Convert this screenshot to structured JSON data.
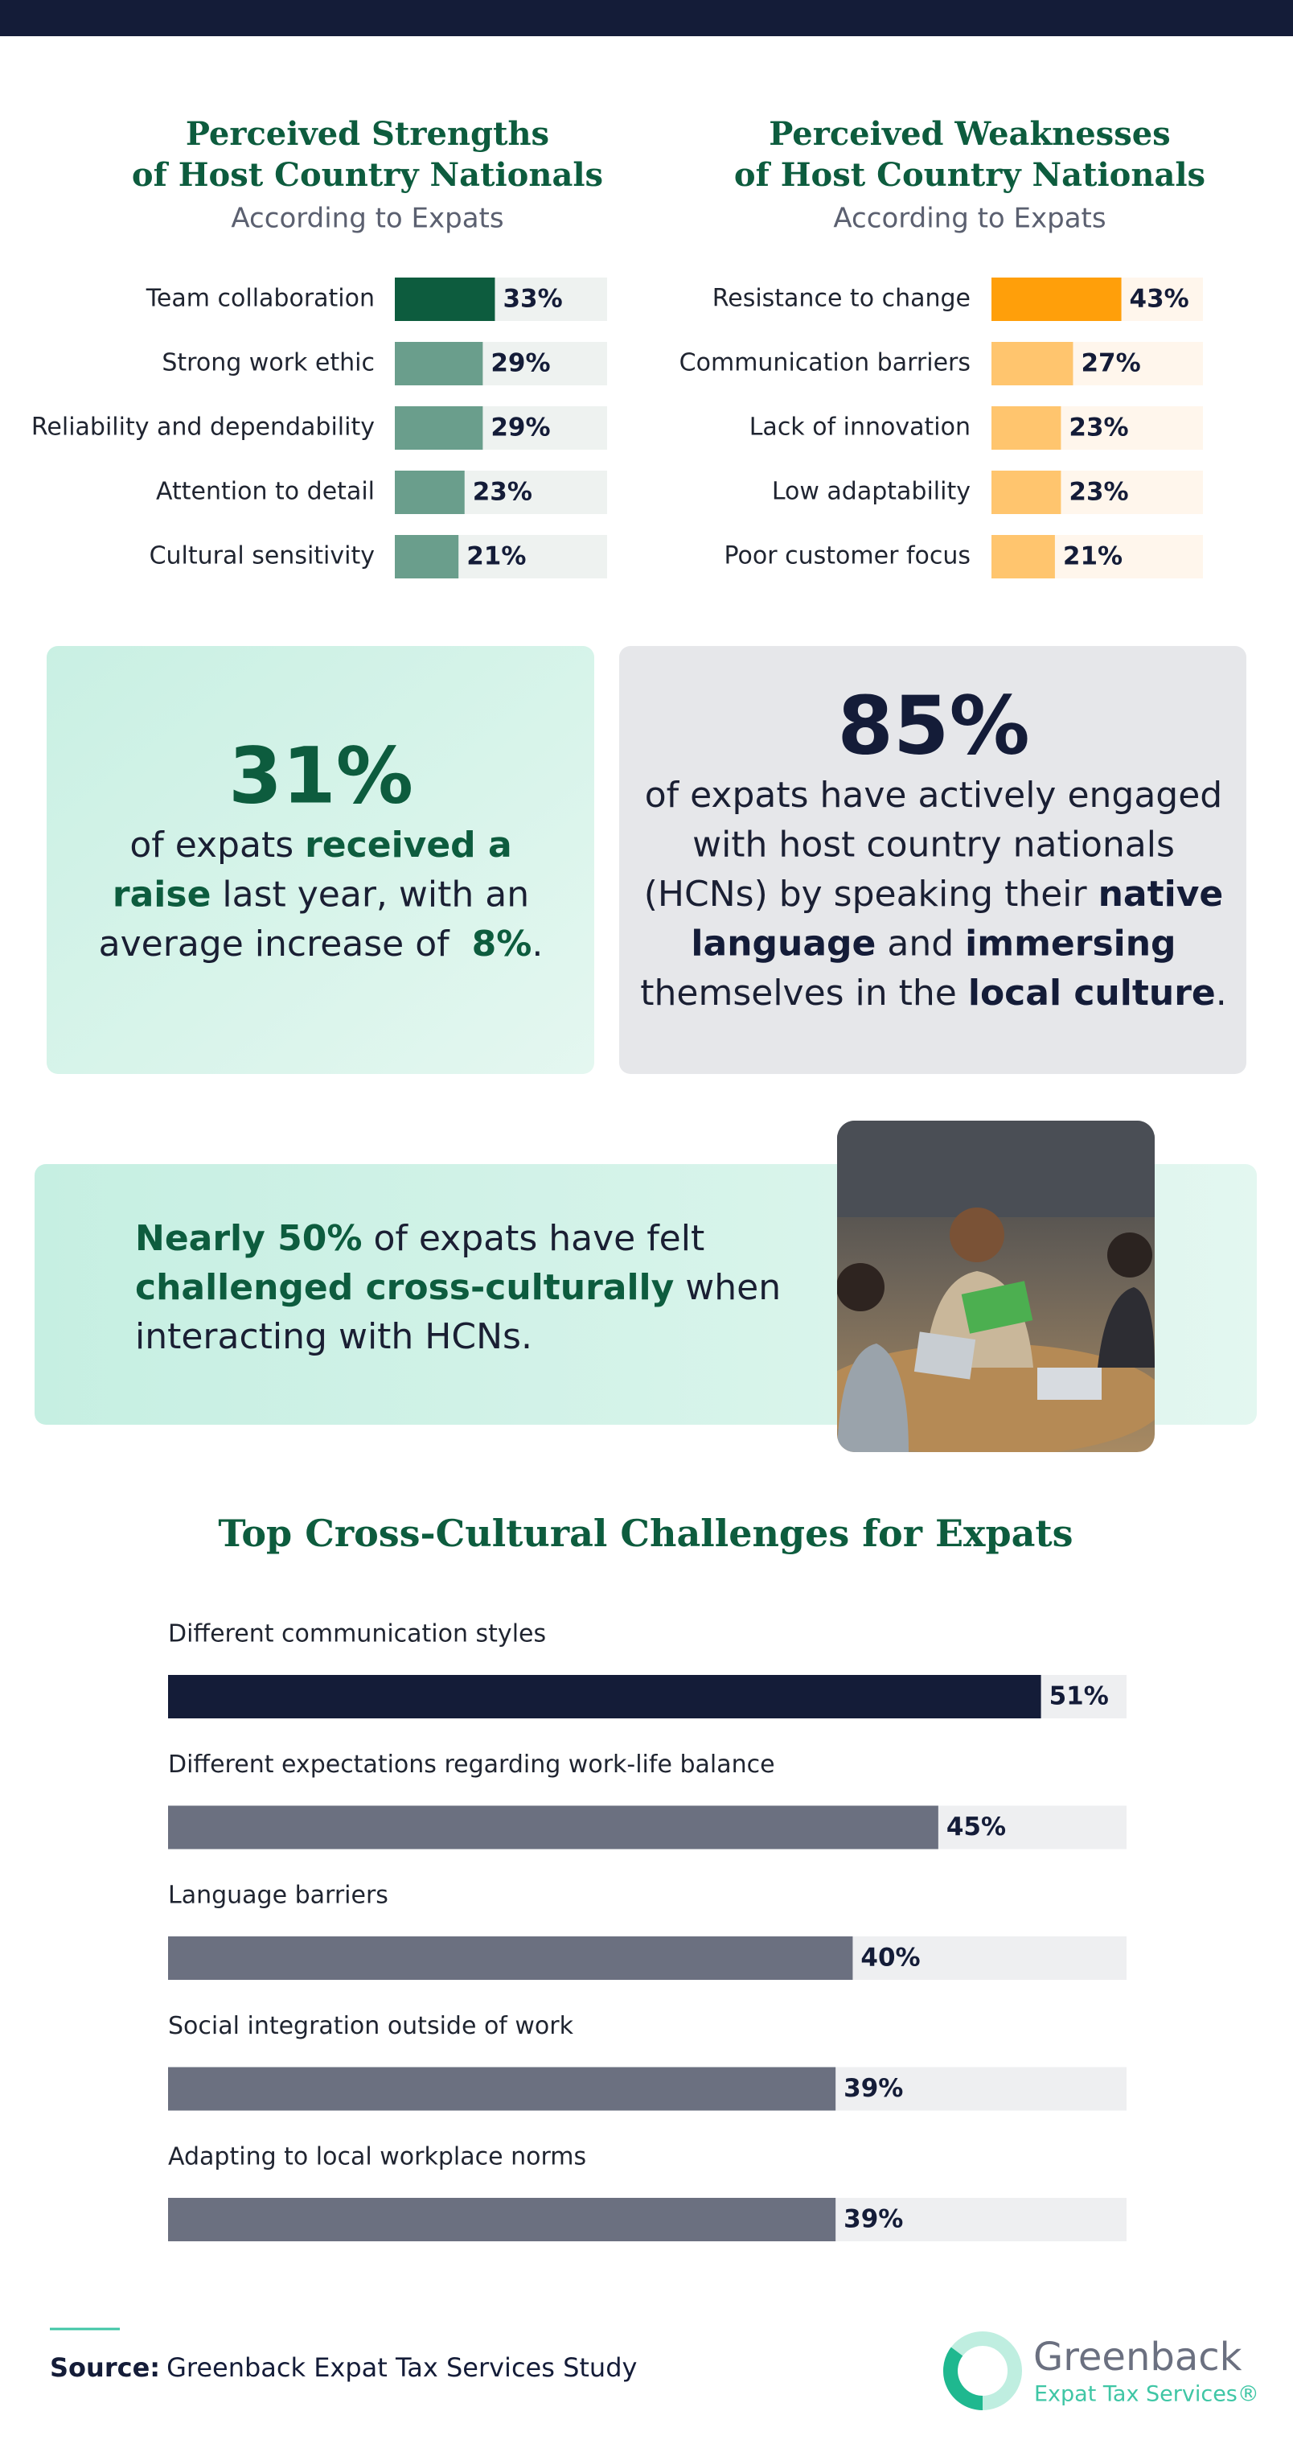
{
  "chart_data": [
    {
      "type": "bar",
      "title": [
        "Perceived Strengths",
        "of Host Country Nationals"
      ],
      "subtitle": "According to Expats",
      "categories": [
        "Team collaboration",
        "Strong work ethic",
        "Reliability and dependability",
        "Attention to detail",
        "Cultural sensitivity"
      ],
      "values": [
        33,
        29,
        29,
        23,
        21
      ],
      "value_labels": [
        "33%",
        "29%",
        "29%",
        "23%",
        "21%"
      ],
      "colors": [
        "#0d5c3e",
        "#6a9e8c",
        "#6a9e8c",
        "#6a9e8c",
        "#6a9e8c"
      ],
      "track_color": "#eef2f0",
      "xlim": [
        0,
        70
      ]
    },
    {
      "type": "bar",
      "title": [
        "Perceived Weaknesses",
        "of Host Country Nationals"
      ],
      "subtitle": "According to Expats",
      "categories": [
        "Resistance to change",
        "Communication barriers",
        "Lack of innovation",
        "Low adaptability",
        "Poor customer focus"
      ],
      "values": [
        43,
        27,
        23,
        23,
        21
      ],
      "value_labels": [
        "43%",
        "27%",
        "23%",
        "23%",
        "21%"
      ],
      "colors": [
        "#ff9f0a",
        "#ffc56e",
        "#ffc56e",
        "#ffc56e",
        "#ffc56e"
      ],
      "track_color": "#fff6ec",
      "xlim": [
        0,
        70
      ]
    },
    {
      "type": "bar",
      "title": [
        "Top Cross-Cultural Challenges for Expats"
      ],
      "categories": [
        "Different communication styles",
        "Different expectations regarding work-life balance",
        "Language barriers",
        "Social integration outside of work",
        "Adapting to local workplace norms"
      ],
      "values": [
        51,
        45,
        40,
        39,
        39
      ],
      "value_labels": [
        "51%",
        "45%",
        "40%",
        "39%",
        "39%"
      ],
      "colors": [
        "#141c38",
        "#6b7080",
        "#6b7080",
        "#6b7080",
        "#6b7080"
      ],
      "track_color": "#eeeff1",
      "xlim": [
        0,
        56
      ]
    }
  ],
  "callouts": [
    {
      "headline": "31%",
      "lines": [
        [
          {
            "text": "of expats ",
            "bold": false
          },
          {
            "text": "received a",
            "bold": true
          }
        ],
        [
          {
            "text": "raise",
            "bold": true
          },
          {
            "text": " last year, with an",
            "bold": false
          }
        ],
        [
          {
            "text": "average increase of  ",
            "bold": false
          },
          {
            "text": "8%",
            "bold": true
          },
          {
            "text": ".",
            "bold": false
          }
        ]
      ]
    },
    {
      "headline": "85%",
      "lines": [
        [
          {
            "text": "of expats have actively engaged",
            "bold": false
          }
        ],
        [
          {
            "text": "with host country nationals",
            "bold": false
          }
        ],
        [
          {
            "text": "(HCNs) by speaking their ",
            "bold": false
          },
          {
            "text": "native",
            "bold": true
          }
        ],
        [
          {
            "text": "language",
            "bold": true
          },
          {
            "text": " and ",
            "bold": false
          },
          {
            "text": "immersing",
            "bold": true
          }
        ],
        [
          {
            "text": "themselves in the ",
            "bold": false
          },
          {
            "text": "local culture",
            "bold": true
          },
          {
            "text": ".",
            "bold": false
          }
        ]
      ]
    },
    {
      "lines": [
        [
          {
            "text": "Nearly 50%",
            "bold": true
          },
          {
            "text": " of expats have felt",
            "bold": false
          }
        ],
        [
          {
            "text": "challenged cross-culturally",
            "bold": true
          },
          {
            "text": " when",
            "bold": false
          }
        ],
        [
          {
            "text": "interacting with HCNs.",
            "bold": false
          }
        ]
      ]
    }
  ],
  "source": {
    "label": "Source:",
    "text": "Greenback Expat Tax Services Study"
  },
  "logo": {
    "name": "Greenback",
    "tagline": "Expat Tax Services®"
  }
}
